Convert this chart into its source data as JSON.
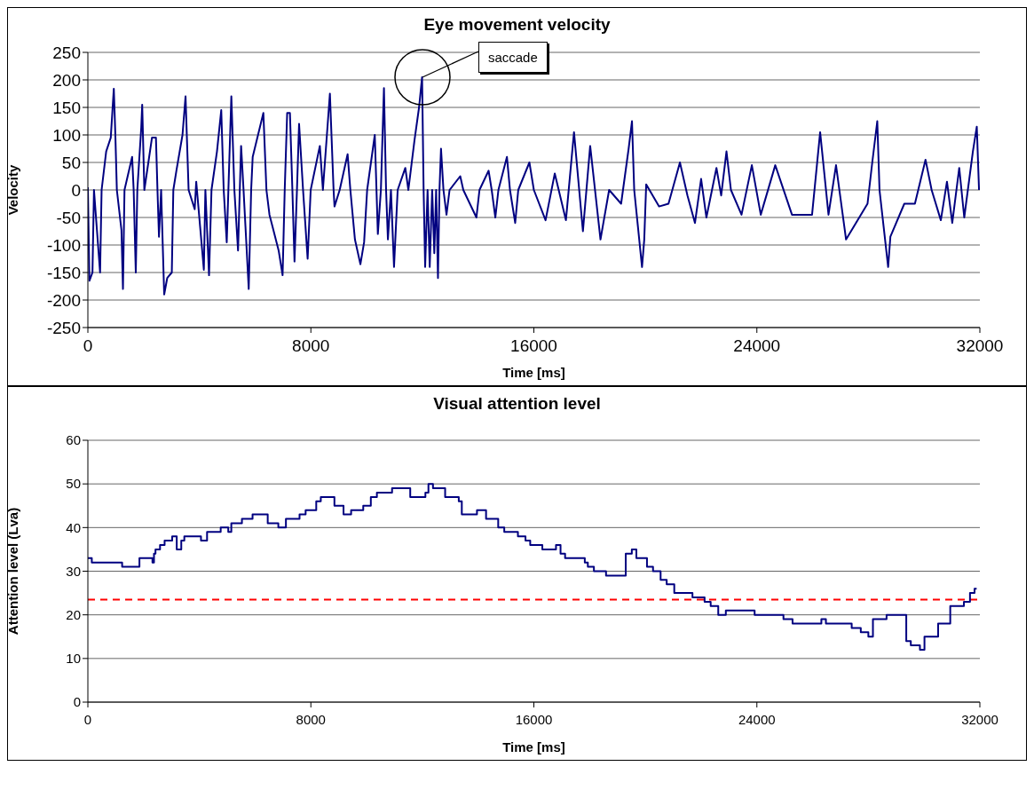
{
  "chart_data": [
    {
      "type": "line",
      "title": "Eye movement velocity",
      "xlabel": "Time [ms]",
      "ylabel": "Velocity",
      "xlim": [
        0,
        32000
      ],
      "xticks": [
        0,
        8000,
        16000,
        24000,
        32000
      ],
      "ylim": [
        -250,
        250
      ],
      "yticks": [
        -250,
        -200,
        -150,
        -100,
        -50,
        0,
        50,
        100,
        150,
        200,
        250
      ],
      "grid": "y",
      "marker": "none",
      "annotations": [
        {
          "text": "saccade",
          "x": 12000,
          "y": 205
        }
      ],
      "series": [
        {
          "color": "#000080",
          "x": [
            0,
            55,
            165,
            219,
            438,
            493,
            657,
            821,
            931,
            986,
            1040,
            1205,
            1259,
            1314,
            1588,
            1643,
            1719,
            1774,
            1916,
            1949,
            2026,
            2300,
            2442,
            2497,
            2551,
            2628,
            2738,
            2847,
            3011,
            3066,
            3176,
            3395,
            3504,
            3614,
            3833,
            3887,
            4161,
            4216,
            4347,
            4435,
            4632,
            4785,
            4873,
            4982,
            5147,
            5256,
            5387,
            5497,
            5585,
            5771,
            5858,
            5913,
            6296,
            6406,
            6515,
            6844,
            6986,
            7062,
            7150,
            7249,
            7337,
            7413,
            7501,
            7577,
            7720,
            7884,
            7994,
            8322,
            8432,
            8683,
            8815,
            8848,
            9034,
            9318,
            9417,
            9581,
            9778,
            9910,
            10019,
            10293,
            10403,
            10512,
            10622,
            10698,
            10764,
            10873,
            10983,
            11114,
            11388,
            11498,
            11717,
            11881,
            11990,
            12045,
            12100,
            12187,
            12264,
            12352,
            12428,
            12494,
            12560,
            12614,
            12669,
            12757,
            12866,
            12976,
            13359,
            13469,
            13939,
            14049,
            14377,
            14487,
            14618,
            14728,
            15034,
            15143,
            15330,
            15440,
            15840,
            16000,
            16420,
            16750,
            17150,
            17440,
            17760,
            18020,
            18390,
            18700,
            19130,
            19400,
            19520,
            19600,
            19880,
            19960,
            20030,
            20490,
            20830,
            21240,
            21510,
            21780,
            22000,
            22190,
            22550,
            22720,
            22910,
            23070,
            23450,
            23820,
            24140,
            24660,
            25260,
            25980,
            26270,
            26570,
            26840,
            27200,
            27970,
            28140,
            28320,
            28400,
            28710,
            28790,
            29290,
            29670,
            30050,
            30270,
            30600,
            30820,
            31010,
            31260,
            31440,
            31750,
            31890,
            31970
          ],
          "values": [
            5,
            -165,
            -150,
            0,
            -150,
            0,
            70,
            95,
            184,
            100,
            0,
            -73,
            -180,
            0,
            60,
            0,
            -150,
            0,
            114,
            155,
            0,
            95,
            95,
            0,
            -85,
            0,
            -190,
            -160,
            -150,
            0,
            35,
            100,
            170,
            0,
            -35,
            15,
            -145,
            0,
            -155,
            0,
            70,
            145,
            0,
            -95,
            170,
            0,
            -110,
            80,
            0,
            -180,
            0,
            60,
            140,
            0,
            -45,
            -110,
            -155,
            0,
            140,
            140,
            0,
            -130,
            0,
            120,
            0,
            -125,
            0,
            80,
            0,
            175,
            0,
            -30,
            0,
            65,
            0,
            -90,
            -135,
            -95,
            0,
            100,
            -80,
            0,
            185,
            0,
            -90,
            0,
            -140,
            0,
            40,
            0,
            90,
            150,
            205,
            0,
            -140,
            0,
            -140,
            0,
            -115,
            0,
            -160,
            0,
            75,
            0,
            -45,
            0,
            25,
            0,
            -50,
            0,
            35,
            0,
            -50,
            0,
            60,
            0,
            -60,
            0,
            50,
            0,
            -55,
            30,
            -55,
            105,
            -75,
            80,
            -90,
            0,
            -25,
            75,
            125,
            0,
            -140,
            -90,
            10,
            -30,
            -25,
            50,
            -10,
            -60,
            20,
            -50,
            40,
            -10,
            70,
            0,
            -45,
            45,
            -45,
            45,
            -45,
            -45,
            105,
            -45,
            45,
            -90,
            -25,
            50,
            125,
            0,
            -140,
            -85,
            -25,
            -25,
            55,
            0,
            -55,
            15,
            -60,
            40,
            -50,
            70,
            115,
            0
          ]
        }
      ]
    },
    {
      "type": "step",
      "title": "Visual attention level",
      "xlabel": "Time [ms]",
      "ylabel": "Attention level (Lva)",
      "xlim": [
        0,
        32000
      ],
      "xticks": [
        0,
        8000,
        16000,
        24000,
        32000
      ],
      "ylim": [
        0,
        60
      ],
      "yticks": [
        0,
        10,
        20,
        30,
        40,
        50,
        60
      ],
      "grid": "y",
      "marker": "none",
      "ref_lines": [
        {
          "axis": "y",
          "value": 23.5,
          "color": "#ff0000",
          "line_style": "dashed"
        }
      ],
      "series": [
        {
          "color": "#000080",
          "x": [
            0,
            141,
            1229,
            1850,
            2317,
            2372,
            2426,
            2589,
            2753,
            3025,
            3188,
            3351,
            3460,
            4058,
            4276,
            4765,
            5037,
            5146,
            5527,
            5908,
            6452,
            6833,
            7105,
            7594,
            7812,
            8193,
            8356,
            8845,
            9172,
            9444,
            9879,
            10151,
            10369,
            10913,
            11565,
            12109,
            12218,
            12381,
            12817,
            13306,
            13415,
            13959,
            14285,
            14721,
            14938,
            15428,
            15700,
            15869,
            16304,
            16794,
            16957,
            17120,
            17827,
            17936,
            18154,
            18589,
            19296,
            19514,
            19677,
            20058,
            20275,
            20547,
            20765,
            21037,
            21690,
            22125,
            22343,
            22615,
            22887,
            23920,
            24954,
            25280,
            26314,
            26477,
            27402,
            27728,
            28000,
            28164,
            28653,
            29360,
            29523,
            29850,
            30013,
            30503,
            30938,
            31428,
            31646,
            31809,
            31885
          ],
          "values": [
            33,
            32,
            31,
            33,
            32,
            34,
            35,
            36,
            37,
            38,
            35,
            37,
            38,
            37,
            39,
            40,
            39,
            41,
            42,
            43,
            41,
            40,
            42,
            43,
            44,
            46,
            47,
            45,
            43,
            44,
            45,
            47,
            48,
            49,
            47,
            48,
            50,
            49,
            47,
            46,
            43,
            44,
            42,
            40,
            39,
            38,
            37,
            36,
            35,
            36,
            34,
            33,
            32,
            31,
            30,
            29,
            34,
            35,
            33,
            31,
            30,
            28,
            27,
            25,
            24,
            23,
            22,
            20,
            21,
            20,
            19,
            18,
            19,
            18,
            17,
            16,
            15,
            19,
            20,
            14,
            13,
            12,
            15,
            18,
            22,
            23,
            25,
            26,
            26
          ]
        }
      ]
    }
  ]
}
